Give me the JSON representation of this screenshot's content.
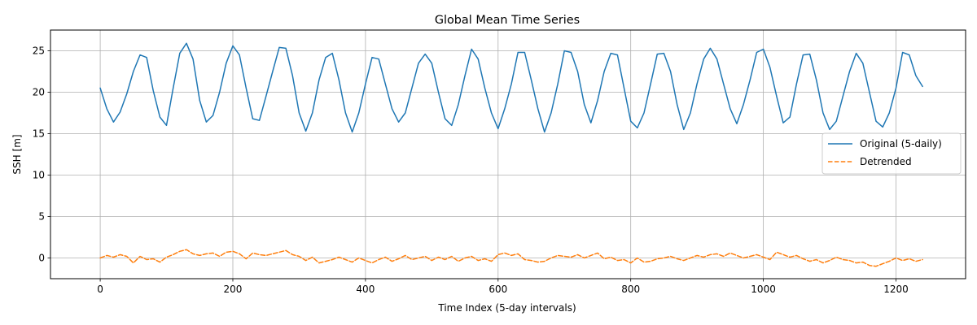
{
  "chart_data": {
    "type": "line",
    "title": "Global Mean Time Series",
    "xlabel": "Time Index (5-day intervals)",
    "ylabel": "SSH [m]",
    "xlim": [
      -75,
      1305
    ],
    "ylim": [
      -2.5,
      27.5
    ],
    "xticks": [
      0,
      200,
      400,
      600,
      800,
      1000,
      1200
    ],
    "yticks": [
      0,
      5,
      10,
      15,
      20,
      25
    ],
    "grid": true,
    "legend_position": "center-right",
    "series": [
      {
        "name": "Original (5-daily)",
        "color": "#1f77b4",
        "style": "solid",
        "x": [
          0,
          10,
          20,
          30,
          40,
          50,
          60,
          70,
          80,
          90,
          100,
          110,
          120,
          130,
          140,
          150,
          160,
          170,
          180,
          190,
          200,
          210,
          220,
          230,
          240,
          250,
          260,
          270,
          280,
          290,
          300,
          310,
          320,
          330,
          340,
          350,
          360,
          370,
          380,
          390,
          400,
          410,
          420,
          430,
          440,
          450,
          460,
          470,
          480,
          490,
          500,
          510,
          520,
          530,
          540,
          550,
          560,
          570,
          580,
          590,
          600,
          610,
          620,
          630,
          640,
          650,
          660,
          670,
          680,
          690,
          700,
          710,
          720,
          730,
          740,
          750,
          760,
          770,
          780,
          790,
          800,
          810,
          820,
          830,
          840,
          850,
          860,
          870,
          880,
          890,
          900,
          910,
          920,
          930,
          940,
          950,
          960,
          970,
          980,
          990,
          1000,
          1010,
          1020,
          1030,
          1040,
          1050,
          1060,
          1070,
          1080,
          1090,
          1100,
          1110,
          1120,
          1130,
          1140,
          1150,
          1160,
          1170,
          1180,
          1190,
          1200,
          1210,
          1220,
          1230,
          1240
        ],
        "values": [
          20.5,
          18.0,
          16.4,
          17.6,
          19.8,
          22.5,
          24.5,
          24.2,
          20.2,
          17.0,
          16.0,
          20.5,
          24.7,
          25.9,
          24.0,
          19.0,
          16.4,
          17.2,
          20.0,
          23.5,
          25.6,
          24.5,
          20.5,
          16.8,
          16.6,
          19.5,
          22.5,
          25.4,
          25.3,
          22.0,
          17.5,
          15.3,
          17.5,
          21.5,
          24.2,
          24.7,
          21.5,
          17.5,
          15.2,
          17.5,
          21.0,
          24.2,
          24.0,
          21.0,
          18.0,
          16.4,
          17.5,
          20.5,
          23.5,
          24.6,
          23.5,
          20.0,
          16.8,
          16.0,
          18.5,
          22.0,
          25.2,
          24.0,
          20.5,
          17.5,
          15.6,
          18.0,
          21.0,
          24.8,
          24.8,
          21.5,
          18.0,
          15.2,
          17.5,
          21.0,
          25.0,
          24.8,
          22.5,
          18.5,
          16.3,
          19.0,
          22.5,
          24.7,
          24.5,
          20.5,
          16.5,
          15.7,
          17.5,
          21.0,
          24.6,
          24.7,
          22.5,
          18.5,
          15.5,
          17.5,
          21.0,
          24.0,
          25.3,
          24.0,
          21.0,
          18.0,
          16.2,
          18.5,
          21.5,
          24.8,
          25.2,
          23.0,
          19.5,
          16.3,
          17.0,
          21.0,
          24.5,
          24.6,
          21.5,
          17.5,
          15.5,
          16.5,
          19.5,
          22.5,
          24.7,
          23.5,
          20.0,
          16.5,
          15.8,
          17.5,
          20.5,
          24.8,
          24.5,
          22.0,
          20.7
        ]
      },
      {
        "name": "Detrended",
        "color": "#ff7f0e",
        "style": "dashed",
        "x": [
          0,
          10,
          20,
          30,
          40,
          50,
          60,
          70,
          80,
          90,
          100,
          110,
          120,
          130,
          140,
          150,
          160,
          170,
          180,
          190,
          200,
          210,
          220,
          230,
          240,
          250,
          260,
          270,
          280,
          290,
          300,
          310,
          320,
          330,
          340,
          350,
          360,
          370,
          380,
          390,
          400,
          410,
          420,
          430,
          440,
          450,
          460,
          470,
          480,
          490,
          500,
          510,
          520,
          530,
          540,
          550,
          560,
          570,
          580,
          590,
          600,
          610,
          620,
          630,
          640,
          650,
          660,
          670,
          680,
          690,
          700,
          710,
          720,
          730,
          740,
          750,
          760,
          770,
          780,
          790,
          800,
          810,
          820,
          830,
          840,
          850,
          860,
          870,
          880,
          890,
          900,
          910,
          920,
          930,
          940,
          950,
          960,
          970,
          980,
          990,
          1000,
          1010,
          1020,
          1030,
          1040,
          1050,
          1060,
          1070,
          1080,
          1090,
          1100,
          1110,
          1120,
          1130,
          1140,
          1150,
          1160,
          1170,
          1180,
          1190,
          1200,
          1210,
          1220,
          1230,
          1240
        ],
        "values": [
          0.0,
          0.3,
          0.1,
          0.4,
          0.2,
          -0.6,
          0.2,
          -0.2,
          -0.1,
          -0.5,
          0.1,
          0.4,
          0.8,
          1.0,
          0.5,
          0.3,
          0.5,
          0.6,
          0.2,
          0.7,
          0.8,
          0.5,
          -0.1,
          0.6,
          0.4,
          0.3,
          0.5,
          0.7,
          0.9,
          0.4,
          0.2,
          -0.3,
          0.1,
          -0.6,
          -0.4,
          -0.2,
          0.1,
          -0.2,
          -0.5,
          0.0,
          -0.3,
          -0.6,
          -0.2,
          0.1,
          -0.4,
          -0.1,
          0.3,
          -0.2,
          0.0,
          0.2,
          -0.3,
          0.1,
          -0.2,
          0.2,
          -0.4,
          0.0,
          0.2,
          -0.3,
          -0.1,
          -0.4,
          0.4,
          0.6,
          0.3,
          0.5,
          -0.2,
          -0.3,
          -0.5,
          -0.4,
          0.0,
          0.3,
          0.2,
          0.1,
          0.4,
          0.0,
          0.3,
          0.6,
          -0.1,
          0.1,
          -0.3,
          -0.2,
          -0.6,
          0.0,
          -0.5,
          -0.4,
          -0.1,
          0.0,
          0.2,
          -0.1,
          -0.3,
          0.0,
          0.3,
          0.1,
          0.4,
          0.5,
          0.2,
          0.6,
          0.3,
          0.0,
          0.2,
          0.4,
          0.1,
          -0.2,
          0.7,
          0.4,
          0.1,
          0.3,
          -0.1,
          -0.4,
          -0.2,
          -0.6,
          -0.3,
          0.1,
          -0.2,
          -0.3,
          -0.6,
          -0.5,
          -0.9,
          -1.0,
          -0.7,
          -0.4,
          0.0,
          -0.3,
          -0.1,
          -0.4,
          -0.2
        ]
      }
    ]
  }
}
